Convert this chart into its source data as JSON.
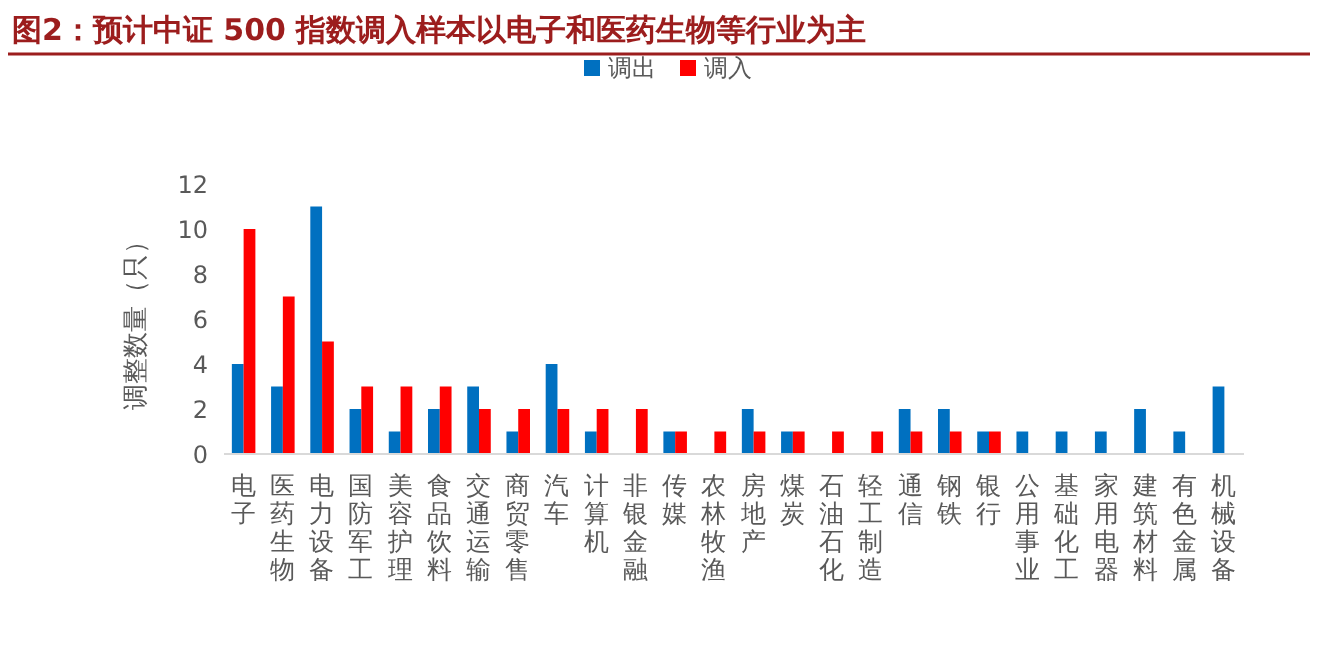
{
  "chart_data": {
    "type": "bar",
    "title": "图2：预计中证 500 指数调入样本以电子和医药生物等行业为主",
    "ylabel": "调整数量（只）",
    "categories": [
      "电子",
      "医药生物",
      "电力设备",
      "国防军工",
      "美容护理",
      "食品饮料",
      "交通运输",
      "商贸零售",
      "汽车",
      "计算机",
      "非银金融",
      "传媒",
      "农林牧渔",
      "房地产",
      "煤炭",
      "石油石化",
      "轻工制造",
      "通信",
      "钢铁",
      "银行",
      "公用事业",
      "基础化工",
      "家用电器",
      "建筑材料",
      "有色金属",
      "机械设备"
    ],
    "series": [
      {
        "name": "调出",
        "color": "#0070c0",
        "values": [
          4,
          3,
          11,
          2,
          1,
          2,
          3,
          1,
          4,
          1,
          0,
          1,
          0,
          2,
          1,
          0,
          0,
          2,
          2,
          1,
          1,
          1,
          1,
          2,
          1,
          3
        ]
      },
      {
        "name": "调入",
        "color": "#ff0000",
        "values": [
          10,
          7,
          5,
          3,
          3,
          3,
          2,
          2,
          2,
          2,
          2,
          1,
          1,
          1,
          1,
          1,
          1,
          1,
          1,
          1,
          0,
          0,
          0,
          0,
          0,
          0
        ]
      }
    ],
    "ylim": [
      0,
      12
    ],
    "yticks": [
      0,
      2,
      4,
      6,
      8,
      10,
      12
    ],
    "grid": false,
    "legend": "top"
  }
}
